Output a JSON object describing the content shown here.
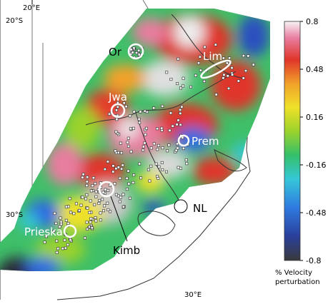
{
  "map": {
    "lat_labels": [
      "20°S",
      "30°S"
    ],
    "lon_labels": [
      "20°E",
      "30°E"
    ]
  },
  "sites": [
    {
      "id": "or",
      "label": "Or"
    },
    {
      "id": "lim",
      "label": "Lim"
    },
    {
      "id": "jwa",
      "label": "Jwa"
    },
    {
      "id": "prem",
      "label": "Prem"
    },
    {
      "id": "kimb",
      "label": "Kimb"
    },
    {
      "id": "nl",
      "label": "NL"
    },
    {
      "id": "prieska",
      "label": "Prieska"
    }
  ],
  "colorbar": {
    "title_line1": "% Velocity",
    "title_line2": "perturbation",
    "ticks": [
      "0.8",
      "0.48",
      "0.16",
      "-0.16",
      "-0.48",
      "-0.8"
    ],
    "min": -0.8,
    "max": 0.8,
    "colors": [
      "#3a3a3a",
      "#2a3f9a",
      "#2f7ae0",
      "#35c7d8",
      "#34c06a",
      "#9bd22c",
      "#efe12a",
      "#f1a12a",
      "#e0352a",
      "#e87d9f",
      "#f8f4f6"
    ]
  }
}
